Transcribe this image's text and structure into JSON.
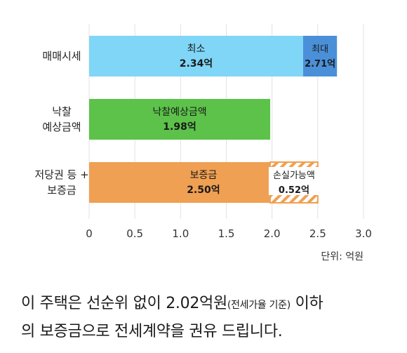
{
  "chart_data": {
    "type": "bar",
    "orientation": "horizontal",
    "stacked": true,
    "categories": [
      [
        "매매시세"
      ],
      [
        "낙찰",
        "예상금액"
      ],
      [
        "저당권 등 +",
        "보증금"
      ]
    ],
    "segments": [
      [
        {
          "label": "최소",
          "value_label": "2.34억",
          "start": 0,
          "end": 2.34,
          "color": "#7fd6f7",
          "pattern": "solid"
        },
        {
          "label": "최대",
          "value_label": "2.71억",
          "start": 2.34,
          "end": 2.71,
          "color": "#4a90d9",
          "pattern": "solid"
        }
      ],
      [
        {
          "label": "낙찰예상금액",
          "value_label": "1.98억",
          "start": 0,
          "end": 1.98,
          "color": "#5cc24a",
          "pattern": "solid"
        }
      ],
      [
        {
          "label": "보증금",
          "value_label": "2.50억",
          "start": 0,
          "end": 2.5,
          "color": "#f0a052",
          "pattern": "solid"
        },
        {
          "label": "손실가능액",
          "value_label": "0.52억",
          "start": 1.98,
          "end": 2.5,
          "color": "#f0a052",
          "pattern": "hatch"
        }
      ]
    ],
    "xlim": [
      0,
      3.0
    ],
    "xticks": [
      "0",
      "0.5",
      "1.0",
      "1.5",
      "2.0",
      "2.5",
      "3.0"
    ],
    "xtick_values": [
      0,
      0.5,
      1.0,
      1.5,
      2.0,
      2.5,
      3.0
    ],
    "grid": true,
    "unit_label": "단위: 억원"
  },
  "caption": {
    "line1_a": "이 주택은 선순위 없이 2.02억원",
    "line1_small": "(전세가율 기준)",
    "line1_b": " 이하",
    "line2": "의 보증금으로 전세계약을 권유 드립니다."
  }
}
